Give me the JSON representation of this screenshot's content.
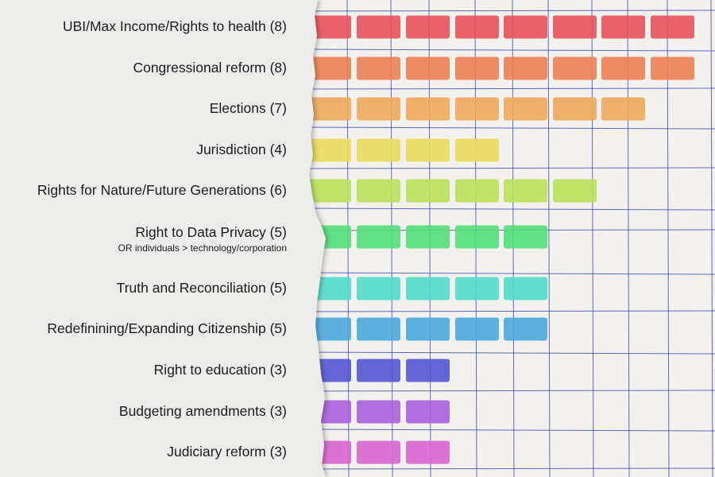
{
  "chart_data": {
    "type": "bar",
    "orientation": "horizontal",
    "unit": "blocks",
    "categories": [
      "UBI/Max Income/Rights to health (8)",
      "Congressional reform (8)",
      "Elections (7)",
      "Jurisdiction (4)",
      "Rights for Nature/Future Generations (6)",
      "Right to Data Privacy (5)",
      "Truth and Reconciliation (5)",
      "Redefinining/Expanding Citizenship (5)",
      "Right to education (3)",
      "Budgeting amendments (3)",
      "Judiciary reform (3)"
    ],
    "subtitles": [
      "",
      "",
      "",
      "",
      "",
      "OR individuals > technology/corporation",
      "",
      "",
      "",
      "",
      ""
    ],
    "values": [
      8,
      8,
      7,
      4,
      6,
      5,
      5,
      5,
      3,
      3,
      3
    ],
    "colors": [
      "#e8525a",
      "#ec8154",
      "#eeaa5a",
      "#e9dc5c",
      "#b9e15a",
      "#53de7a",
      "#52dbcb",
      "#4aa8db",
      "#5456d2",
      "#a85fdc",
      "#d765cf"
    ],
    "xlim": [
      0,
      8
    ],
    "grid": true,
    "legend": "none"
  }
}
